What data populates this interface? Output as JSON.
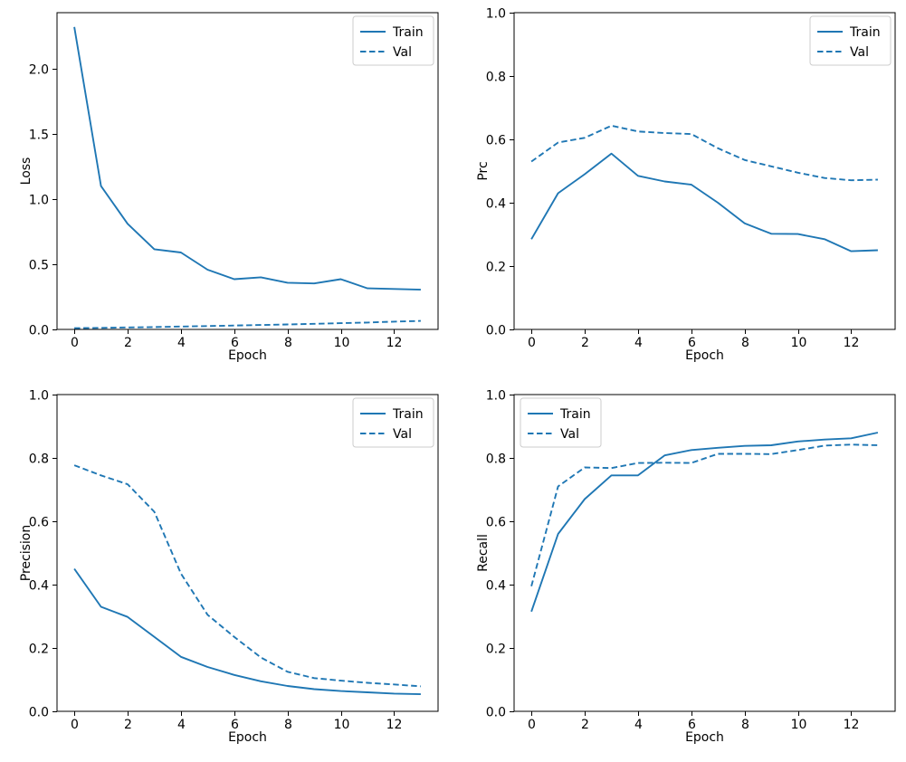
{
  "figure": {
    "background": "#ffffff",
    "line_color": "#1f77b4",
    "legend_entries": [
      "Train",
      "Val"
    ]
  },
  "chart_data": [
    {
      "type": "line",
      "title": "",
      "xlabel": "Epoch",
      "ylabel": "Loss",
      "x": [
        0,
        1,
        2,
        3,
        4,
        5,
        6,
        7,
        8,
        9,
        10,
        11,
        12,
        13
      ],
      "xticks": [
        0,
        2,
        4,
        6,
        8,
        10,
        12
      ],
      "yticks": [
        0.0,
        0.5,
        1.0,
        1.5,
        2.0
      ],
      "xlim": [
        -0.65,
        13.65
      ],
      "ylim": [
        0,
        2.43
      ],
      "grid": false,
      "legend": {
        "position": "upper right",
        "entries": [
          "Train",
          "Val"
        ]
      },
      "series": [
        {
          "name": "Train",
          "style": "solid",
          "values": [
            2.32,
            1.1,
            0.81,
            0.615,
            0.59,
            0.458,
            0.385,
            0.4,
            0.358,
            0.353,
            0.385,
            0.315,
            0.31,
            0.305
          ]
        },
        {
          "name": "Val",
          "style": "dashed",
          "values": [
            0.01,
            0.012,
            0.015,
            0.018,
            0.022,
            0.026,
            0.03,
            0.034,
            0.038,
            0.043,
            0.048,
            0.053,
            0.06,
            0.065
          ]
        }
      ]
    },
    {
      "type": "line",
      "title": "",
      "xlabel": "Epoch",
      "ylabel": "Prc",
      "x": [
        0,
        1,
        2,
        3,
        4,
        5,
        6,
        7,
        8,
        9,
        10,
        11,
        12,
        13
      ],
      "xticks": [
        0,
        2,
        4,
        6,
        8,
        10,
        12
      ],
      "yticks": [
        0.0,
        0.2,
        0.4,
        0.6,
        0.8,
        1.0
      ],
      "xlim": [
        -0.65,
        13.65
      ],
      "ylim": [
        0,
        1.0
      ],
      "grid": false,
      "legend": {
        "position": "upper right",
        "entries": [
          "Train",
          "Val"
        ]
      },
      "series": [
        {
          "name": "Train",
          "style": "solid",
          "values": [
            0.285,
            0.43,
            0.49,
            0.555,
            0.485,
            0.467,
            0.457,
            0.4,
            0.335,
            0.302,
            0.301,
            0.285,
            0.247,
            0.25
          ]
        },
        {
          "name": "Val",
          "style": "dashed",
          "values": [
            0.53,
            0.59,
            0.605,
            0.643,
            0.625,
            0.62,
            0.617,
            0.572,
            0.535,
            0.515,
            0.495,
            0.478,
            0.471,
            0.473
          ]
        }
      ]
    },
    {
      "type": "line",
      "title": "",
      "xlabel": "Epoch",
      "ylabel": "Precision",
      "x": [
        0,
        1,
        2,
        3,
        4,
        5,
        6,
        7,
        8,
        9,
        10,
        11,
        12,
        13
      ],
      "xticks": [
        0,
        2,
        4,
        6,
        8,
        10,
        12
      ],
      "yticks": [
        0.0,
        0.2,
        0.4,
        0.6,
        0.8,
        1.0
      ],
      "xlim": [
        -0.65,
        13.65
      ],
      "ylim": [
        0,
        1.0
      ],
      "grid": false,
      "legend": {
        "position": "upper right",
        "entries": [
          "Train",
          "Val"
        ]
      },
      "series": [
        {
          "name": "Train",
          "style": "solid",
          "values": [
            0.45,
            0.33,
            0.298,
            0.235,
            0.172,
            0.14,
            0.115,
            0.095,
            0.08,
            0.07,
            0.064,
            0.06,
            0.056,
            0.054
          ]
        },
        {
          "name": "Val",
          "style": "dashed",
          "values": [
            0.777,
            0.745,
            0.717,
            0.63,
            0.435,
            0.305,
            0.235,
            0.17,
            0.125,
            0.105,
            0.097,
            0.09,
            0.085,
            0.079
          ]
        }
      ]
    },
    {
      "type": "line",
      "title": "",
      "xlabel": "Epoch",
      "ylabel": "Recall",
      "x": [
        0,
        1,
        2,
        3,
        4,
        5,
        6,
        7,
        8,
        9,
        10,
        11,
        12,
        13
      ],
      "xticks": [
        0,
        2,
        4,
        6,
        8,
        10,
        12
      ],
      "yticks": [
        0.0,
        0.2,
        0.4,
        0.6,
        0.8,
        1.0
      ],
      "xlim": [
        -0.65,
        13.65
      ],
      "ylim": [
        0,
        1.0
      ],
      "grid": false,
      "legend": {
        "position": "upper left",
        "entries": [
          "Train",
          "Val"
        ]
      },
      "series": [
        {
          "name": "Train",
          "style": "solid",
          "values": [
            0.315,
            0.56,
            0.67,
            0.745,
            0.745,
            0.808,
            0.825,
            0.832,
            0.838,
            0.84,
            0.852,
            0.858,
            0.862,
            0.88
          ]
        },
        {
          "name": "Val",
          "style": "dashed",
          "values": [
            0.395,
            0.71,
            0.77,
            0.768,
            0.784,
            0.785,
            0.784,
            0.813,
            0.813,
            0.812,
            0.825,
            0.839,
            0.842,
            0.84
          ]
        }
      ]
    }
  ]
}
